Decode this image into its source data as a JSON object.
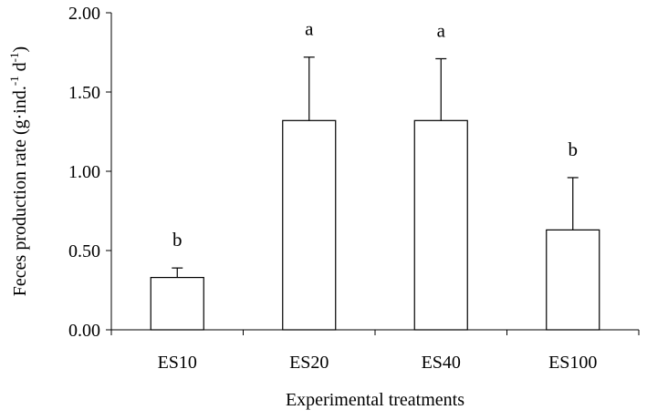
{
  "chart_data": {
    "type": "bar",
    "categories": [
      "ES10",
      "ES20",
      "ES40",
      "ES100"
    ],
    "values": [
      0.33,
      1.32,
      1.32,
      0.63
    ],
    "errors": [
      0.06,
      0.4,
      0.39,
      0.33
    ],
    "significance": [
      "b",
      "a",
      "a",
      "b"
    ],
    "ylim": [
      0,
      2.0
    ],
    "yticks": [
      0,
      0.5,
      1.0,
      1.5,
      2.0
    ],
    "ytick_labels": [
      "0.00",
      "0.50",
      "1.00",
      "1.50",
      "2.00"
    ],
    "xlabel": "Experimental treatments",
    "ylabel": {
      "main": "Feces production rate (g·ind.",
      "sup1": "-1",
      "mid": " d",
      "sup2": "-1",
      "end": ")"
    },
    "grid": false,
    "legend": "none"
  }
}
